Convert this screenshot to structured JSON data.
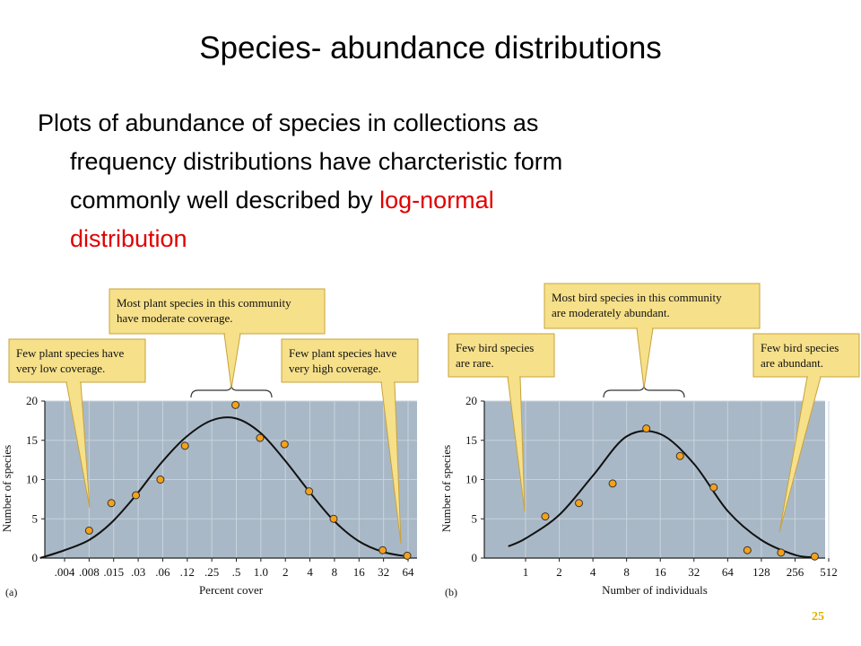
{
  "slide": {
    "title": "Species- abundance distributions",
    "body_lines": [
      "Plots of abundance of species in collections as",
      "frequency distributions have charcteristic form",
      "commonly well described by "
    ],
    "body_highlight_1": "log-normal",
    "body_highlight_2": "distribution",
    "slide_number": "25"
  },
  "colors": {
    "plot_bg": "#a9b8c6",
    "grid": "#c8d3dd",
    "point_fill": "#f5a11a",
    "callout_bg": "#f6e08a",
    "callout_border": "#c8a33a",
    "highlight_text": "#e00000"
  },
  "chart_data": [
    {
      "type": "scatter",
      "panel_label": "(a)",
      "xlabel": "Percent cover",
      "ylabel": "Number of species",
      "x_scale": "log2",
      "ylim": [
        0,
        20
      ],
      "x_ticks": [
        ".004",
        ".008",
        ".015",
        ".03",
        ".06",
        ".12",
        ".25",
        ".5",
        "1.0",
        "2",
        "4",
        "8",
        "16",
        "32",
        "64"
      ],
      "y_ticks": [
        "0",
        "5",
        "10",
        "15",
        "20"
      ],
      "points": [
        {
          "x": 0.008,
          "y": 3.5
        },
        {
          "x": 0.015,
          "y": 7.0
        },
        {
          "x": 0.03,
          "y": 8.0
        },
        {
          "x": 0.06,
          "y": 10.0
        },
        {
          "x": 0.12,
          "y": 14.3
        },
        {
          "x": 0.5,
          "y": 19.5
        },
        {
          "x": 1.0,
          "y": 15.3
        },
        {
          "x": 2,
          "y": 14.5
        },
        {
          "x": 4,
          "y": 8.5
        },
        {
          "x": 8,
          "y": 5.0
        },
        {
          "x": 32,
          "y": 1.0
        },
        {
          "x": 64,
          "y": 0.3
        }
      ],
      "fit_curve": [
        {
          "x": 0.002,
          "y": 0.0
        },
        {
          "x": 0.004,
          "y": 1.0
        },
        {
          "x": 0.008,
          "y": 2.3
        },
        {
          "x": 0.015,
          "y": 4.5
        },
        {
          "x": 0.03,
          "y": 8.0
        },
        {
          "x": 0.06,
          "y": 12.0
        },
        {
          "x": 0.12,
          "y": 15.3
        },
        {
          "x": 0.25,
          "y": 17.5
        },
        {
          "x": 0.5,
          "y": 17.8
        },
        {
          "x": 1.0,
          "y": 16.0
        },
        {
          "x": 2,
          "y": 12.5
        },
        {
          "x": 4,
          "y": 8.5
        },
        {
          "x": 8,
          "y": 4.8
        },
        {
          "x": 16,
          "y": 2.2
        },
        {
          "x": 32,
          "y": 0.8
        },
        {
          "x": 64,
          "y": 0.2
        }
      ],
      "annotations": [
        "Few plant species have very low coverage.",
        "Most plant species in this community have moderate coverage.",
        "Few plant species have very high coverage."
      ]
    },
    {
      "type": "scatter",
      "panel_label": "(b)",
      "xlabel": "Number of individuals",
      "ylabel": "Number of species",
      "x_scale": "log2",
      "ylim": [
        0,
        20
      ],
      "x_ticks": [
        "1",
        "2",
        "4",
        "8",
        "16",
        "32",
        "64",
        "128",
        "256",
        "512"
      ],
      "y_ticks": [
        "0",
        "5",
        "10",
        "15",
        "20"
      ],
      "points": [
        {
          "x": 1.5,
          "y": 5.3
        },
        {
          "x": 3,
          "y": 7.0
        },
        {
          "x": 6,
          "y": 9.5
        },
        {
          "x": 12,
          "y": 16.5
        },
        {
          "x": 24,
          "y": 13.0
        },
        {
          "x": 48,
          "y": 9.0
        },
        {
          "x": 96,
          "y": 1.0
        },
        {
          "x": 192,
          "y": 0.7
        },
        {
          "x": 384,
          "y": 0.2
        }
      ],
      "fit_curve": [
        {
          "x": 0.7,
          "y": 1.5
        },
        {
          "x": 1,
          "y": 2.5
        },
        {
          "x": 2,
          "y": 5.5
        },
        {
          "x": 4,
          "y": 10.5
        },
        {
          "x": 8,
          "y": 15.5
        },
        {
          "x": 16,
          "y": 15.8
        },
        {
          "x": 32,
          "y": 12.0
        },
        {
          "x": 64,
          "y": 6.0
        },
        {
          "x": 128,
          "y": 2.3
        },
        {
          "x": 256,
          "y": 0.4
        },
        {
          "x": 384,
          "y": 0.1
        }
      ],
      "annotations": [
        "Few bird species are rare.",
        "Most bird species in this community are moderately abundant.",
        "Few bird species are abundant."
      ]
    }
  ]
}
